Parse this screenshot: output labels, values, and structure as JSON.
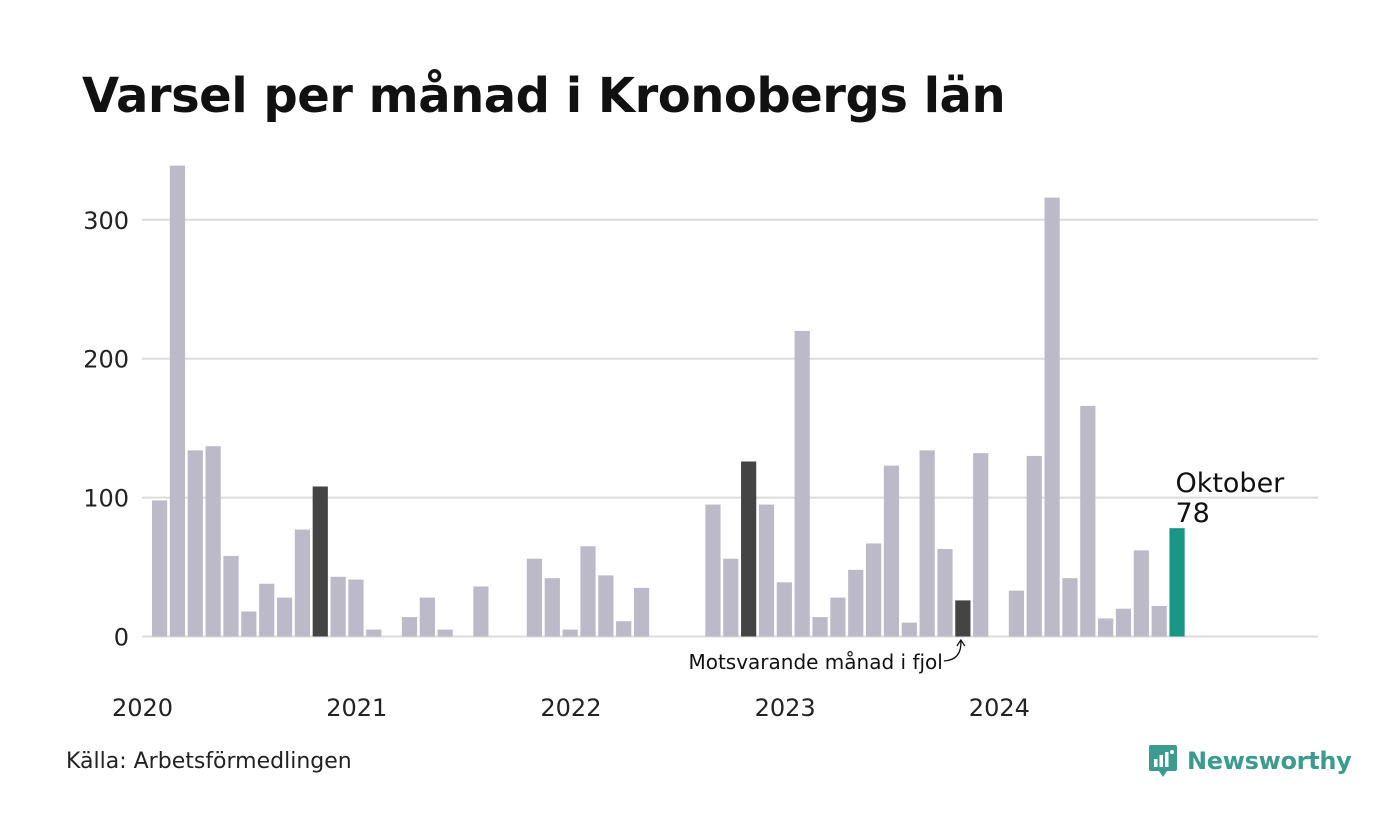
{
  "title": "Varsel per månad i Kronobergs län",
  "source": "Källa: Arbetsförmedlingen",
  "brand": {
    "name": "Newsworthy",
    "icon": "newsworthy-logo-icon"
  },
  "colors": {
    "default_bar": "#bcbac8",
    "previous_year_bar": "#444444",
    "current_bar": "#1a9687",
    "gridline": "#dcdcdc",
    "brand": "#3a9b8e"
  },
  "chart_data": {
    "type": "bar",
    "title": "Varsel per månad i Kronobergs län",
    "xlabel": "",
    "ylabel": "",
    "ylim": [
      0,
      345
    ],
    "yticks": [
      0,
      100,
      200,
      300
    ],
    "grid": true,
    "year_labels": [
      "2020",
      "2021",
      "2022",
      "2023",
      "2024"
    ],
    "categories": [
      "2020-01",
      "2020-02",
      "2020-03",
      "2020-04",
      "2020-05",
      "2020-06",
      "2020-07",
      "2020-08",
      "2020-09",
      "2020-10",
      "2020-11",
      "2020-12",
      "2021-01",
      "2021-02",
      "2021-03",
      "2021-04",
      "2021-05",
      "2021-06",
      "2021-07",
      "2021-08",
      "2021-09",
      "2021-10",
      "2021-11",
      "2021-12",
      "2022-01",
      "2022-02",
      "2022-03",
      "2022-04",
      "2022-05",
      "2022-06",
      "2022-07",
      "2022-08",
      "2022-09",
      "2022-10",
      "2022-11",
      "2022-12",
      "2023-01",
      "2023-02",
      "2023-03",
      "2023-04",
      "2023-05",
      "2023-06",
      "2023-07",
      "2023-08",
      "2023-09",
      "2023-10",
      "2023-11",
      "2023-12",
      "2024-01",
      "2024-02",
      "2024-03",
      "2024-04",
      "2024-05",
      "2024-06",
      "2024-07",
      "2024-08",
      "2024-09",
      "2024-10"
    ],
    "values": [
      98,
      339,
      134,
      137,
      58,
      18,
      38,
      28,
      77,
      108,
      43,
      41,
      5,
      0,
      14,
      28,
      5,
      0,
      36,
      0,
      0,
      56,
      42,
      5,
      65,
      44,
      11,
      35,
      0,
      0,
      0,
      95,
      56,
      126,
      95,
      39,
      220,
      14,
      28,
      48,
      67,
      123,
      10,
      134,
      63,
      26,
      132,
      0,
      33,
      130,
      316,
      42,
      166,
      13,
      20,
      62,
      22,
      78
    ],
    "highlights": {
      "previous_year": [
        "2020-10",
        "2022-10",
        "2023-10"
      ],
      "current": "2024-10"
    },
    "annotations": {
      "current_month": "Oktober",
      "current_value": "78",
      "previous_year_label": "Motsvarande månad i fjol"
    }
  }
}
